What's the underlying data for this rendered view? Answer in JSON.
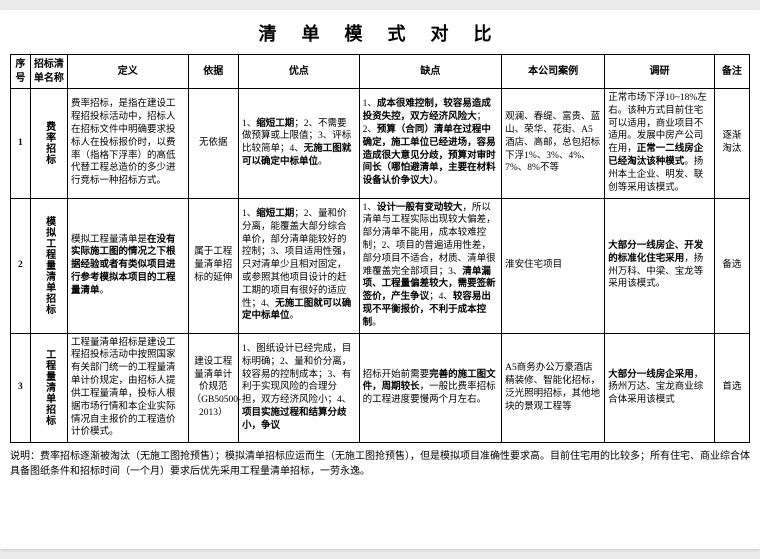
{
  "title": "清 单 模 式 对 比",
  "columns": [
    "序号",
    "招标清单名称",
    "定义",
    "依据",
    "优点",
    "缺点",
    "本公司案例",
    "调研",
    "备注"
  ],
  "rows": [
    {
      "idx": "1",
      "name": "费率招标",
      "def": "费率招标，是指在建设工程招投标活动中，招标人在招标文件中明确要求投标人在投标报价时，以费率（指格下浮率）的高低代替工程总造价的多少进行竞标一种招标方式。",
      "basis": "无依据",
      "adv_html": "1、<b>缩短工期</b>；2、不需要做预算或上限值；3、评标比较简单；4、<b>无施工图就可以确定中标单位</b>。",
      "dis_html": "1、<b>成本很难控制，较容易造成投资失控，双方经济风险大</b>；2、<b>预算（合同）清单在过程中确定，施工单位已经进场，容易造成很大意见分歧，预算对审时间长（哪怕避清单，主要在材料设备认价争议大）</b>。",
      "case": "观澜、春缇、富贵、蓝山、荣华、花街、A5酒店、高邮，总包招标下浮1%、3%、4%、7%、8%不等",
      "research_html": "正常市场下浮10~18%左右。该种方式目前住宅可以适用，商业项目不适用。发展中房产公司在用，<b>正常一二线房企已经淘汰该种模式</b>。扬州本土企业、明发、联创等采用该模式。",
      "remark": "逐渐淘汰"
    },
    {
      "idx": "2",
      "name": "模拟工程量清单招标",
      "def": "模拟工程量清单是<b>在没有实际施工图的情况之下根据经验或者有类似项目进行参考模拟本项目的工程量清单</b>。",
      "basis": "属于工程量清单招标的延伸",
      "adv_html": "1、<b>缩短工期</b>；2、量和价分离，能覆盖大部分综合单价，部分清单能较好的控制；3、项目适用性强，只对清单少且相对固定，或参照其他项目设计的赶工期的项目有很好的适应性；4、<b>无施工图就可以确定中标单位</b>。",
      "dis_html": "1、<b>设计一般有变动较大</b>，所以清单与工程实际出现较大偏差，部分清单不能用，成本较难控制；2、项目的普遍适用性差，部分项目不适合，材质、清单很难覆盖完全部项目；3、<b>清单漏项、工程量偏差较大，需要签新签价，产生争议</b>；4、<b>较容易出现不平衡报价，不利于成本控制</b>。",
      "case": "淮安住宅项目",
      "research_html": "<b>大部分一线房企、开发的标准化住宅采用</b>，扬州万科、中梁、宝龙等采用该模式。",
      "remark": "备选"
    },
    {
      "idx": "3",
      "name": "工程量清单招标",
      "def": "工程量清单招标是建设工程招投标活动中按照国家有关部门统一的工程量清单计价规定，由招标人提供工程量清单，投标人根据市场行情和本企业实际情况自主报价的工程造价计价模式。",
      "basis": "建设工程量清单计价规范（GB50500-2013）",
      "adv_html": "1、图纸设计已经完成，目标明确；2、量和价分离，较容易的控制成本；3、有利于实现风险的合理分担，双方经济风险小；4、<b>项目实施过程和结算分歧小，争议</b>",
      "dis_html": "招标开始前需要<b>完善的施工图文件，周期较长</b>，一般比费率招标的工程进度要慢两个月左右。",
      "case": "A5商务办公万豪酒店精装修、智能化招标，泛光照明招标，其他地块的景观工程等",
      "research_html": "<b>大部分一线房企采用</b>，扬州万达、宝龙商业综合体采用该模式",
      "remark": "首选"
    }
  ],
  "note": "说明：费率招标逐渐被淘汰（无施工图抢预售）；模拟清单招标应运而生（无施工图抢预售），但是模拟项目准确性要求高。目前住宅用的比较多；所有住宅、商业综合体具备图纸条件和招标时间（一个月）要求后优先采用工程量清单招标，一劳永逸。",
  "colors": {
    "border": "#000000",
    "page_bg": "#ffffff",
    "desk_bg": "#ececec"
  }
}
